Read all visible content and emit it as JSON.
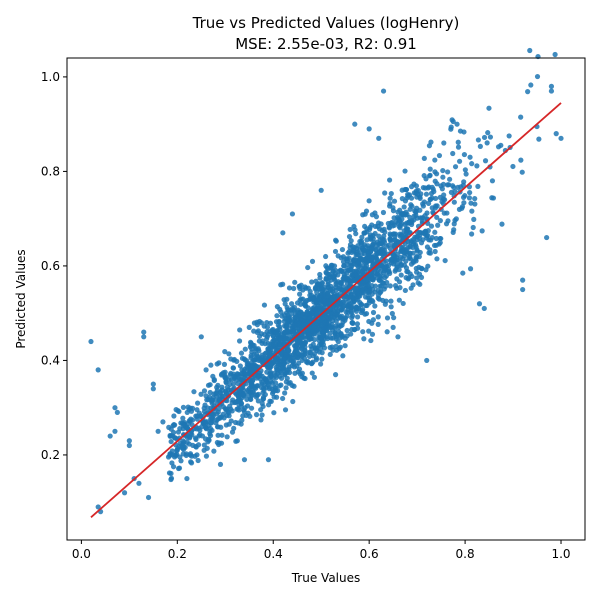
{
  "chart_data": {
    "type": "scatter",
    "title_line1": "True vs Predicted Values (logHenry)",
    "title_line2": "MSE: 2.55e-03, R2: 0.91",
    "xlabel": "True Values",
    "ylabel": "Predicted Values",
    "xlim": [
      -0.03,
      1.05
    ],
    "ylim": [
      0.02,
      1.04
    ],
    "xticks": [
      0.0,
      0.2,
      0.4,
      0.6,
      0.8,
      1.0
    ],
    "yticks": [
      0.2,
      0.4,
      0.6,
      0.8,
      1.0
    ],
    "xtick_labels": [
      "0.0",
      "0.2",
      "0.4",
      "0.6",
      "0.8",
      "1.0"
    ],
    "ytick_labels": [
      "0.2",
      "0.4",
      "0.6",
      "0.8",
      "1.0"
    ],
    "grid": false,
    "series": [
      {
        "color": "#1f77b4",
        "points": [
          [
            0.02,
            0.44
          ],
          [
            0.035,
            0.38
          ],
          [
            0.035,
            0.09
          ],
          [
            0.04,
            0.08
          ],
          [
            0.06,
            0.24
          ],
          [
            0.07,
            0.3
          ],
          [
            0.07,
            0.25
          ],
          [
            0.075,
            0.29
          ],
          [
            0.09,
            0.12
          ],
          [
            0.1,
            0.23
          ],
          [
            0.1,
            0.22
          ],
          [
            0.11,
            0.15
          ],
          [
            0.12,
            0.14
          ],
          [
            0.13,
            0.46
          ],
          [
            0.13,
            0.45
          ],
          [
            0.14,
            0.11
          ],
          [
            0.15,
            0.35
          ],
          [
            0.15,
            0.34
          ],
          [
            0.16,
            0.25
          ],
          [
            0.17,
            0.27
          ],
          [
            0.19,
            0.2
          ],
          [
            0.2,
            0.21
          ],
          [
            0.21,
            0.22
          ],
          [
            0.22,
            0.15
          ],
          [
            0.25,
            0.45
          ],
          [
            0.26,
            0.38
          ],
          [
            0.27,
            0.39
          ],
          [
            0.29,
            0.18
          ],
          [
            0.34,
            0.19
          ],
          [
            0.35,
            0.47
          ],
          [
            0.37,
            0.4
          ],
          [
            0.39,
            0.19
          ],
          [
            0.42,
            0.67
          ],
          [
            0.44,
            0.71
          ],
          [
            0.5,
            0.76
          ],
          [
            0.53,
            0.37
          ],
          [
            0.57,
            0.9
          ],
          [
            0.6,
            0.89
          ],
          [
            0.62,
            0.87
          ],
          [
            0.63,
            0.97
          ],
          [
            0.65,
            0.47
          ],
          [
            0.66,
            0.45
          ],
          [
            0.72,
            0.4
          ],
          [
            0.83,
            0.52
          ],
          [
            0.84,
            0.51
          ],
          [
            0.92,
            0.55
          ],
          [
            0.92,
            0.57
          ],
          [
            0.97,
            0.66
          ],
          [
            0.98,
            0.98
          ],
          [
            0.98,
            0.97
          ],
          [
            0.99,
            0.88
          ],
          [
            1.0,
            0.87
          ]
        ]
      }
    ],
    "cloud": {
      "n": 2400,
      "x_min": 0.18,
      "x_max": 0.99,
      "mse": 0.00255,
      "slope": 0.9,
      "intercept": 0.05,
      "color": "#1f77b4"
    },
    "fit_line": {
      "x": [
        0.02,
        1.0
      ],
      "y": [
        0.068,
        0.945
      ],
      "color": "#d62728"
    }
  }
}
